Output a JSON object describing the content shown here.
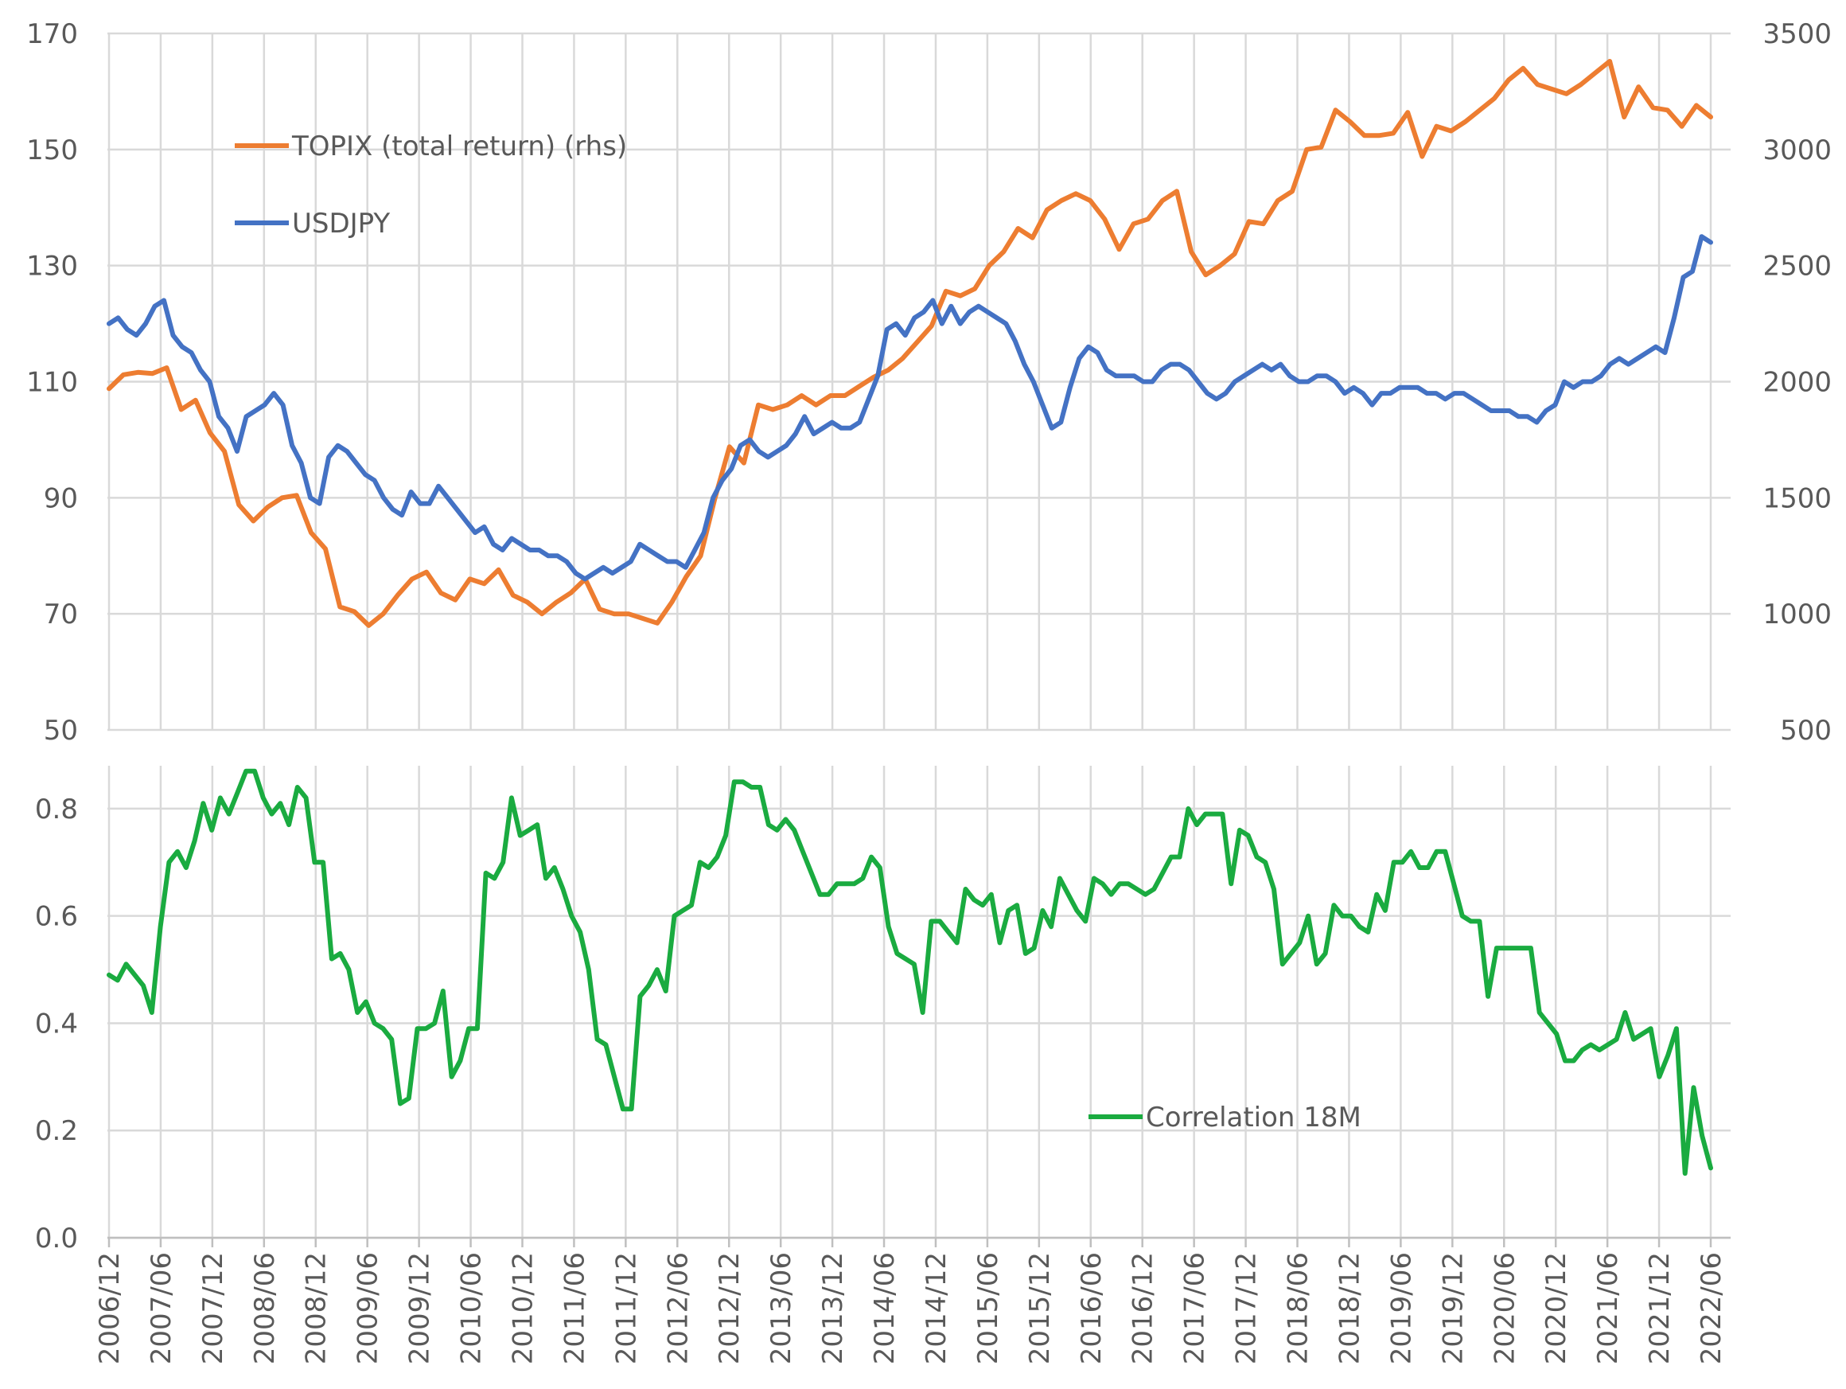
{
  "chart_data": [
    {
      "type": "line",
      "x_labels": [
        "2006/12",
        "2007/06",
        "2007/12",
        "2008/06",
        "2008/12",
        "2009/06",
        "2009/12",
        "2010/06",
        "2010/12",
        "2011/06",
        "2011/12",
        "2012/06",
        "2012/12",
        "2013/06",
        "2013/12",
        "2014/06",
        "2014/12",
        "2015/06",
        "2015/12",
        "2016/06",
        "2016/12",
        "2017/06",
        "2017/12",
        "2018/06",
        "2018/12",
        "2019/06",
        "2019/12",
        "2020/06",
        "2020/12",
        "2021/06",
        "2021/12",
        "2022/06"
      ],
      "y_left": {
        "ticks": [
          50,
          70,
          90,
          110,
          130,
          150,
          170
        ],
        "ylim": [
          50,
          170
        ]
      },
      "y_right": {
        "ticks": [
          500,
          1000,
          1500,
          2000,
          2500,
          3000,
          3500
        ],
        "ylim": [
          500,
          3500
        ]
      },
      "grid": true,
      "series": [
        {
          "name": "TOPIX (total return) (rhs)",
          "axis": "right",
          "color": "#ed7d31",
          "values": [
            1970,
            2030,
            2040,
            2035,
            2060,
            1880,
            1920,
            1780,
            1700,
            1470,
            1400,
            1460,
            1500,
            1510,
            1350,
            1280,
            1030,
            1010,
            950,
            1000,
            1080,
            1150,
            1180,
            1090,
            1060,
            1150,
            1130,
            1190,
            1080,
            1050,
            1000,
            1050,
            1090,
            1150,
            1020,
            1000,
            1000,
            980,
            960,
            1050,
            1160,
            1250,
            1500,
            1720,
            1650,
            1900,
            1880,
            1900,
            1940,
            1900,
            1940,
            1940,
            1980,
            2020,
            2050,
            2100,
            2170,
            2240,
            2390,
            2370,
            2400,
            2500,
            2560,
            2660,
            2620,
            2740,
            2780,
            2810,
            2780,
            2700,
            2570,
            2680,
            2700,
            2780,
            2820,
            2560,
            2460,
            2500,
            2550,
            2690,
            2680,
            2780,
            2820,
            3000,
            3010,
            3170,
            3120,
            3060,
            3060,
            3070,
            3160,
            2970,
            3100,
            3080,
            3120,
            3170,
            3220,
            3300,
            3350,
            3280,
            3260,
            3240,
            3280,
            3330,
            3380,
            3140,
            3270,
            3180,
            3170,
            3100,
            3190,
            3140
          ]
        },
        {
          "name": "USDJPY",
          "axis": "left",
          "color": "#4472c4",
          "values": [
            120,
            121,
            119,
            118,
            120,
            123,
            124,
            118,
            116,
            115,
            112,
            110,
            104,
            102,
            98,
            104,
            105,
            106,
            108,
            106,
            99,
            96,
            90,
            89,
            97,
            99,
            98,
            96,
            94,
            93,
            90,
            88,
            87,
            91,
            89,
            89,
            92,
            90,
            88,
            86,
            84,
            85,
            82,
            81,
            83,
            82,
            81,
            81,
            80,
            80,
            79,
            77,
            76,
            77,
            78,
            77,
            78,
            79,
            82,
            81,
            80,
            79,
            79,
            78,
            81,
            84,
            90,
            93,
            95,
            99,
            100,
            98,
            97,
            98,
            99,
            101,
            104,
            101,
            102,
            103,
            102,
            102,
            103,
            107,
            111,
            119,
            120,
            118,
            121,
            122,
            124,
            120,
            123,
            120,
            122,
            123,
            122,
            121,
            120,
            117,
            113,
            110,
            106,
            102,
            103,
            109,
            114,
            116,
            115,
            112,
            111,
            111,
            111,
            110,
            110,
            112,
            113,
            113,
            112,
            110,
            108,
            107,
            108,
            110,
            111,
            112,
            113,
            112,
            113,
            111,
            110,
            110,
            111,
            111,
            110,
            108,
            109,
            108,
            106,
            108,
            108,
            109,
            109,
            109,
            108,
            108,
            107,
            108,
            108,
            107,
            106,
            105,
            105,
            105,
            104,
            104,
            103,
            105,
            106,
            110,
            109,
            110,
            110,
            111,
            113,
            114,
            113,
            114,
            115,
            116,
            115,
            121,
            128,
            129,
            135,
            134
          ]
        }
      ]
    },
    {
      "type": "line",
      "x_labels": [
        "2006/12",
        "2007/06",
        "2007/12",
        "2008/06",
        "2008/12",
        "2009/06",
        "2009/12",
        "2010/06",
        "2010/12",
        "2011/06",
        "2011/12",
        "2012/06",
        "2012/12",
        "2013/06",
        "2013/12",
        "2014/06",
        "2014/12",
        "2015/06",
        "2015/12",
        "2016/06",
        "2016/12",
        "2017/06",
        "2017/12",
        "2018/06",
        "2018/12",
        "2019/06",
        "2019/12",
        "2020/06",
        "2020/12",
        "2021/06",
        "2021/12",
        "2022/06"
      ],
      "y_left": {
        "ticks": [
          "0.0",
          "0.2",
          "0.4",
          "0.6",
          "0.8"
        ],
        "ylim": [
          0,
          0.88
        ]
      },
      "grid": true,
      "series": [
        {
          "name": "Correlation 18M",
          "axis": "left",
          "color": "#1aab40",
          "values": [
            0.49,
            0.48,
            0.51,
            0.49,
            0.47,
            0.42,
            0.58,
            0.7,
            0.72,
            0.69,
            0.74,
            0.81,
            0.76,
            0.82,
            0.79,
            0.83,
            0.87,
            0.87,
            0.82,
            0.79,
            0.81,
            0.77,
            0.84,
            0.82,
            0.7,
            0.7,
            0.52,
            0.53,
            0.5,
            0.42,
            0.44,
            0.4,
            0.39,
            0.37,
            0.25,
            0.26,
            0.39,
            0.39,
            0.4,
            0.46,
            0.3,
            0.33,
            0.39,
            0.39,
            0.68,
            0.67,
            0.7,
            0.82,
            0.75,
            0.76,
            0.77,
            0.67,
            0.69,
            0.65,
            0.6,
            0.57,
            0.5,
            0.37,
            0.36,
            0.3,
            0.24,
            0.24,
            0.45,
            0.47,
            0.5,
            0.46,
            0.6,
            0.61,
            0.62,
            0.7,
            0.69,
            0.71,
            0.75,
            0.85,
            0.85,
            0.84,
            0.84,
            0.77,
            0.76,
            0.78,
            0.76,
            0.72,
            0.68,
            0.64,
            0.64,
            0.66,
            0.66,
            0.66,
            0.67,
            0.71,
            0.69,
            0.58,
            0.53,
            0.52,
            0.51,
            0.42,
            0.59,
            0.59,
            0.57,
            0.55,
            0.65,
            0.63,
            0.62,
            0.64,
            0.55,
            0.61,
            0.62,
            0.53,
            0.54,
            0.61,
            0.58,
            0.67,
            0.64,
            0.61,
            0.59,
            0.67,
            0.66,
            0.64,
            0.66,
            0.66,
            0.65,
            0.64,
            0.65,
            0.68,
            0.71,
            0.71,
            0.8,
            0.77,
            0.79,
            0.79,
            0.79,
            0.66,
            0.76,
            0.75,
            0.71,
            0.7,
            0.65,
            0.51,
            0.53,
            0.55,
            0.6,
            0.51,
            0.53,
            0.62,
            0.6,
            0.6,
            0.58,
            0.57,
            0.64,
            0.61,
            0.7,
            0.7,
            0.72,
            0.69,
            0.69,
            0.72,
            0.72,
            0.66,
            0.6,
            0.59,
            0.59,
            0.45,
            0.54,
            0.54,
            0.54,
            0.54,
            0.54,
            0.42,
            0.4,
            0.38,
            0.33,
            0.33,
            0.35,
            0.36,
            0.35,
            0.36,
            0.37,
            0.42,
            0.37,
            0.38,
            0.39,
            0.3,
            0.34,
            0.39,
            0.12,
            0.28,
            0.19,
            0.13
          ]
        }
      ]
    }
  ]
}
